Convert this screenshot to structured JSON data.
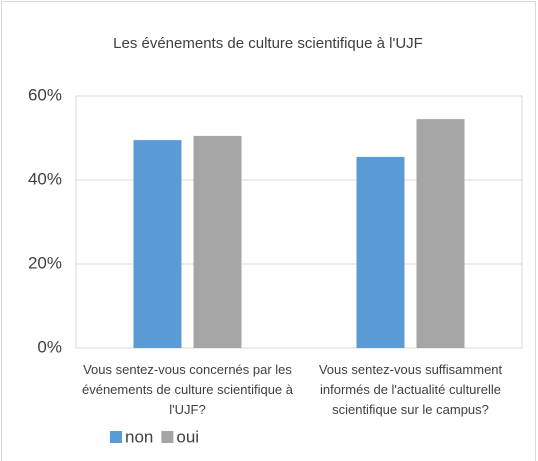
{
  "chart_data": {
    "type": "bar",
    "title": "Les événements de culture scientifique à l'UJF",
    "categories": [
      "Vous sentez-vous concernés par les événements de culture scientifique à l'UJF?",
      "Vous sentez-vous suffisamment informés de l'actualité culturelle scientifique sur le campus?"
    ],
    "series": [
      {
        "name": "non",
        "color": "#5b9bd5",
        "values": [
          49.5,
          45.5
        ]
      },
      {
        "name": "oui",
        "color": "#a5a5a5",
        "values": [
          50.5,
          54.5
        ]
      }
    ],
    "ylim": [
      0,
      60
    ],
    "yticks": [
      {
        "value": 0,
        "label": "0%"
      },
      {
        "value": 20,
        "label": "20%"
      },
      {
        "value": 40,
        "label": "40%"
      },
      {
        "value": 60,
        "label": "60%"
      }
    ],
    "grid": true,
    "legend": "bottom-left"
  }
}
